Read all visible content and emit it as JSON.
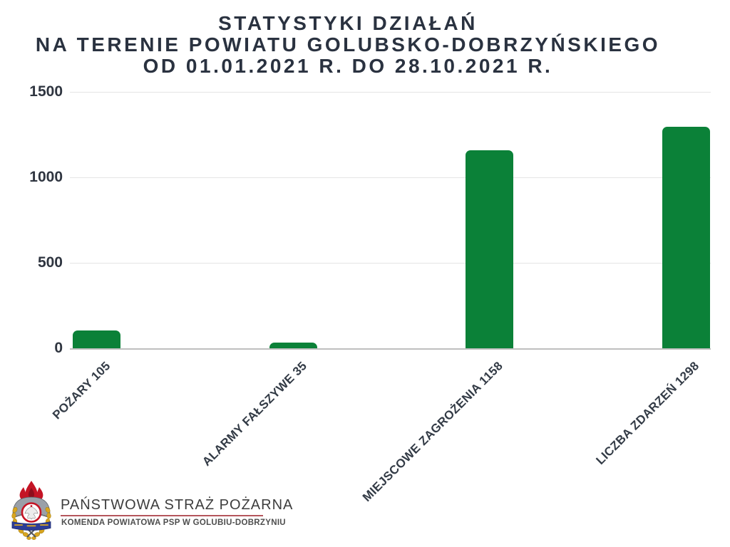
{
  "title": {
    "lines": [
      "STATYSTYKI DZIAŁAŃ",
      "NA TERENIE POWIATU GOLUBSKO-DOBRZYŃSKIEGO",
      "OD 01.01.2021 R. DO 28.10.2021 R."
    ]
  },
  "chart_data": {
    "type": "bar",
    "title": "STATYSTYKI DZIAŁAŃ NA TERENIE POWIATU GOLUBSKO-DOBRZYŃSKIEGO OD 01.01.2021 R. DO 28.10.2021 R.",
    "categories": [
      "POŻARY",
      "ALARMY FAŁSZYWE",
      "MIEJSCOWE ZAGROŻENIA",
      "LICZBA ZDARZEŃ"
    ],
    "values": [
      105,
      35,
      1158,
      1298
    ],
    "tick_labels": [
      "POŻARY 105",
      "ALARMY FAŁSZYWE 35",
      "MIEJSCOWE ZAGROŻENIA 1158",
      "LICZBA ZDARZEŃ 1298"
    ],
    "y_ticks": [
      0,
      500,
      1000,
      1500
    ],
    "ylim": [
      0,
      1500
    ],
    "xlabel": "",
    "ylabel": "",
    "grid": true,
    "legend": false,
    "bar_color": "#0b8138"
  },
  "footer": {
    "org_name": "PAŃSTWOWA STRAŻ POŻARNA",
    "org_sub": "KOMENDA POWIATOWA PSP W GOLUBIU-DOBRZYNIU",
    "emblem": "psp-crest-icon"
  },
  "colors": {
    "bar_green": "#0b8138",
    "title_text": "#2a3240",
    "axis_text": "#333b46",
    "gridline": "#e5e5e5",
    "baseline": "#bfbfbf",
    "accent_red": "#b5555c"
  }
}
